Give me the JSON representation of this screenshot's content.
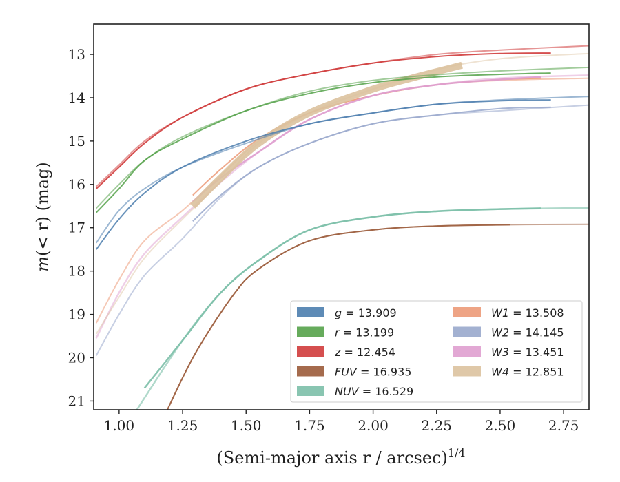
{
  "chart_data": {
    "type": "line",
    "xlabel": "(Semi-major axis r / arcsec)^{1/4}",
    "xlabel_main": "(Semi-major axis r / arcsec)",
    "xlabel_exponent": "1/4",
    "ylabel": "m(< r) (mag)",
    "ylabel_m": "m",
    "ylabel_rest": "(< r) (mag)",
    "xlim": [
      0.9,
      2.85
    ],
    "ylim": [
      21.2,
      12.3
    ],
    "y_inverted": true,
    "grid": false,
    "legend_position": "lower-right",
    "xticks": [
      "1.00",
      "1.25",
      "1.50",
      "1.75",
      "2.00",
      "2.25",
      "2.50",
      "2.75"
    ],
    "yticks": [
      "13",
      "14",
      "15",
      "16",
      "17",
      "18",
      "19",
      "20",
      "21"
    ],
    "xtick_values": [
      1.0,
      1.25,
      1.5,
      1.75,
      2.0,
      2.25,
      2.5,
      2.75
    ],
    "ytick_values": [
      13,
      14,
      15,
      16,
      17,
      18,
      19,
      20,
      21
    ],
    "series": [
      {
        "name": "g",
        "legend_label": "g = 13.909",
        "color": "#4c7eae",
        "width": 2,
        "curves": [
          {
            "opacity": 0.85,
            "points": [
              [
                0.91,
                17.5
              ],
              [
                1.0,
                16.8
              ],
              [
                1.1,
                16.2
              ],
              [
                1.25,
                15.6
              ],
              [
                1.5,
                15.0
              ],
              [
                1.75,
                14.6
              ],
              [
                2.0,
                14.35
              ],
              [
                2.25,
                14.15
              ],
              [
                2.5,
                14.07
              ],
              [
                2.7,
                14.05
              ]
            ]
          },
          {
            "opacity": 0.55,
            "points": [
              [
                0.91,
                17.35
              ],
              [
                1.0,
                16.6
              ],
              [
                1.1,
                16.1
              ],
              [
                1.25,
                15.6
              ],
              [
                1.5,
                15.05
              ],
              [
                1.75,
                14.6
              ],
              [
                2.0,
                14.35
              ],
              [
                2.25,
                14.15
              ],
              [
                2.5,
                14.05
              ],
              [
                2.85,
                13.97
              ]
            ]
          }
        ]
      },
      {
        "name": "r",
        "legend_label": "r = 13.199",
        "color": "#55a24a",
        "width": 2,
        "curves": [
          {
            "opacity": 0.85,
            "points": [
              [
                0.91,
                16.65
              ],
              [
                1.0,
                16.1
              ],
              [
                1.1,
                15.45
              ],
              [
                1.25,
                14.95
              ],
              [
                1.5,
                14.3
              ],
              [
                1.75,
                13.9
              ],
              [
                2.0,
                13.65
              ],
              [
                2.25,
                13.52
              ],
              [
                2.5,
                13.46
              ],
              [
                2.7,
                13.43
              ]
            ]
          },
          {
            "opacity": 0.55,
            "points": [
              [
                0.91,
                16.55
              ],
              [
                1.0,
                16.0
              ],
              [
                1.1,
                15.45
              ],
              [
                1.25,
                14.9
              ],
              [
                1.5,
                14.3
              ],
              [
                1.75,
                13.85
              ],
              [
                2.0,
                13.6
              ],
              [
                2.25,
                13.47
              ],
              [
                2.5,
                13.38
              ],
              [
                2.85,
                13.3
              ]
            ]
          }
        ]
      },
      {
        "name": "z",
        "legend_label": "z = 12.454",
        "color": "#d03c3c",
        "width": 2,
        "curves": [
          {
            "opacity": 0.9,
            "points": [
              [
                0.91,
                16.1
              ],
              [
                1.0,
                15.6
              ],
              [
                1.1,
                15.05
              ],
              [
                1.25,
                14.45
              ],
              [
                1.5,
                13.8
              ],
              [
                1.75,
                13.45
              ],
              [
                2.0,
                13.2
              ],
              [
                2.25,
                13.05
              ],
              [
                2.5,
                12.98
              ],
              [
                2.7,
                12.97
              ]
            ]
          },
          {
            "opacity": 0.55,
            "points": [
              [
                0.91,
                16.05
              ],
              [
                1.0,
                15.55
              ],
              [
                1.1,
                15.0
              ],
              [
                1.25,
                14.45
              ],
              [
                1.5,
                13.8
              ],
              [
                1.75,
                13.45
              ],
              [
                2.0,
                13.2
              ],
              [
                2.25,
                13.0
              ],
              [
                2.5,
                12.9
              ],
              [
                2.85,
                12.8
              ]
            ]
          }
        ]
      },
      {
        "name": "FUV",
        "legend_label": "FUV = 16.935",
        "color": "#9b5b3a",
        "width": 2,
        "curves": [
          {
            "opacity": 0.85,
            "points": [
              [
                1.19,
                21.2
              ],
              [
                1.3,
                19.9
              ],
              [
                1.45,
                18.55
              ],
              [
                1.55,
                17.95
              ],
              [
                1.75,
                17.3
              ],
              [
                2.0,
                17.05
              ],
              [
                2.25,
                16.96
              ],
              [
                2.54,
                16.93
              ]
            ]
          },
          {
            "opacity": 0.55,
            "points": [
              [
                1.19,
                21.2
              ],
              [
                1.3,
                19.9
              ],
              [
                1.45,
                18.55
              ],
              [
                1.55,
                17.95
              ],
              [
                1.75,
                17.3
              ],
              [
                2.0,
                17.05
              ],
              [
                2.25,
                16.96
              ],
              [
                2.54,
                16.93
              ],
              [
                2.85,
                16.92
              ]
            ]
          }
        ]
      },
      {
        "name": "NUV",
        "legend_label": "NUV = 16.529",
        "color": "#7cbfa8",
        "width": 2.5,
        "curves": [
          {
            "opacity": 0.9,
            "points": [
              [
                1.1,
                20.7
              ],
              [
                1.25,
                19.6
              ],
              [
                1.4,
                18.5
              ],
              [
                1.55,
                17.75
              ],
              [
                1.75,
                17.05
              ],
              [
                2.0,
                16.75
              ],
              [
                2.25,
                16.62
              ],
              [
                2.5,
                16.57
              ],
              [
                2.66,
                16.55
              ]
            ]
          },
          {
            "opacity": 0.6,
            "points": [
              [
                1.07,
                21.2
              ],
              [
                1.25,
                19.6
              ],
              [
                1.4,
                18.5
              ],
              [
                1.55,
                17.75
              ],
              [
                1.75,
                17.05
              ],
              [
                2.0,
                16.75
              ],
              [
                2.25,
                16.62
              ],
              [
                2.5,
                16.57
              ],
              [
                2.85,
                16.54
              ]
            ]
          }
        ]
      },
      {
        "name": "W1",
        "legend_label": "W1 = 13.508",
        "color": "#ec9a78",
        "width": 2,
        "curves": [
          {
            "opacity": 0.85,
            "points": [
              [
                1.29,
                16.25
              ],
              [
                1.4,
                15.65
              ],
              [
                1.55,
                14.95
              ],
              [
                1.75,
                14.35
              ],
              [
                2.0,
                13.95
              ],
              [
                2.25,
                13.7
              ],
              [
                2.5,
                13.58
              ],
              [
                2.66,
                13.55
              ]
            ]
          },
          {
            "opacity": 0.55,
            "points": [
              [
                0.91,
                19.2
              ],
              [
                1.0,
                18.2
              ],
              [
                1.1,
                17.3
              ],
              [
                1.25,
                16.6
              ],
              [
                1.4,
                15.8
              ],
              [
                1.55,
                15.0
              ],
              [
                1.75,
                14.35
              ],
              [
                2.0,
                13.95
              ],
              [
                2.25,
                13.7
              ],
              [
                2.5,
                13.6
              ],
              [
                2.85,
                13.55
              ]
            ]
          }
        ]
      },
      {
        "name": "W2",
        "legend_label": "W2 = 14.145",
        "color": "#99a8cc",
        "width": 2,
        "curves": [
          {
            "opacity": 0.85,
            "points": [
              [
                1.29,
                16.85
              ],
              [
                1.4,
                16.25
              ],
              [
                1.55,
                15.6
              ],
              [
                1.75,
                15.05
              ],
              [
                2.0,
                14.6
              ],
              [
                2.25,
                14.4
              ],
              [
                2.5,
                14.25
              ],
              [
                2.7,
                14.22
              ]
            ]
          },
          {
            "opacity": 0.55,
            "points": [
              [
                0.91,
                19.95
              ],
              [
                1.0,
                19.0
              ],
              [
                1.1,
                18.1
              ],
              [
                1.25,
                17.25
              ],
              [
                1.4,
                16.3
              ],
              [
                1.55,
                15.6
              ],
              [
                1.75,
                15.05
              ],
              [
                2.0,
                14.6
              ],
              [
                2.25,
                14.4
              ],
              [
                2.5,
                14.3
              ],
              [
                2.85,
                14.17
              ]
            ]
          }
        ]
      },
      {
        "name": "W3",
        "legend_label": "W3 = 13.451",
        "color": "#df9fcf",
        "width": 2.5,
        "curves": [
          {
            "opacity": 0.9,
            "points": [
              [
                1.29,
                16.4
              ],
              [
                1.4,
                15.85
              ],
              [
                1.55,
                15.25
              ],
              [
                1.75,
                14.5
              ],
              [
                2.0,
                13.95
              ],
              [
                2.25,
                13.7
              ],
              [
                2.5,
                13.58
              ],
              [
                2.66,
                13.52
              ]
            ]
          },
          {
            "opacity": 0.5,
            "points": [
              [
                0.91,
                19.55
              ],
              [
                1.0,
                18.5
              ],
              [
                1.1,
                17.6
              ],
              [
                1.25,
                16.75
              ],
              [
                1.4,
                15.95
              ],
              [
                1.55,
                15.25
              ],
              [
                1.75,
                14.5
              ],
              [
                2.0,
                13.95
              ],
              [
                2.25,
                13.7
              ],
              [
                2.5,
                13.55
              ],
              [
                2.85,
                13.48
              ]
            ]
          }
        ]
      },
      {
        "name": "W4",
        "legend_label": "W4 = 12.851",
        "color": "#dcc29e",
        "width": 10,
        "curves": [
          {
            "opacity": 0.9,
            "points": [
              [
                1.29,
                16.5
              ],
              [
                1.4,
                15.85
              ],
              [
                1.55,
                15.05
              ],
              [
                1.75,
                14.35
              ],
              [
                2.0,
                13.8
              ],
              [
                2.15,
                13.55
              ],
              [
                2.35,
                13.25
              ]
            ]
          },
          {
            "opacity": 0.45,
            "width": 2,
            "points": [
              [
                0.91,
                19.45
              ],
              [
                1.0,
                18.6
              ],
              [
                1.1,
                17.7
              ],
              [
                1.25,
                16.8
              ],
              [
                1.4,
                15.95
              ],
              [
                1.55,
                15.05
              ],
              [
                1.75,
                14.35
              ],
              [
                2.0,
                13.8
              ],
              [
                2.25,
                13.35
              ],
              [
                2.5,
                13.1
              ],
              [
                2.85,
                12.98
              ]
            ]
          }
        ]
      }
    ],
    "legend_order": [
      "g",
      "r",
      "z",
      "FUV",
      "NUV",
      "W1",
      "W2",
      "W3",
      "W4"
    ]
  }
}
